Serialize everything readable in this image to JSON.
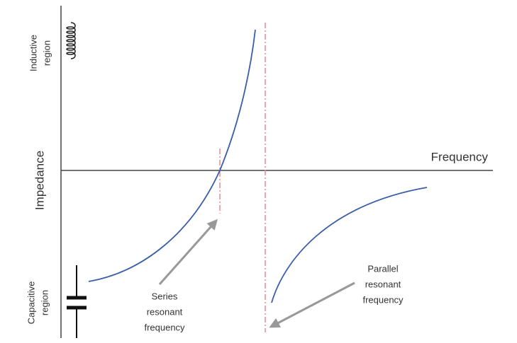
{
  "axes": {
    "x_label": "Frequency",
    "y_label": "Impedance"
  },
  "regions": {
    "inductive": [
      "Inductive",
      "region"
    ],
    "capacitive": [
      "Capacitive",
      "region"
    ]
  },
  "annotations": {
    "series": [
      "Series",
      "resonant",
      "frequency"
    ],
    "parallel": [
      "Parallel",
      "resonant",
      "frequency"
    ]
  }
}
